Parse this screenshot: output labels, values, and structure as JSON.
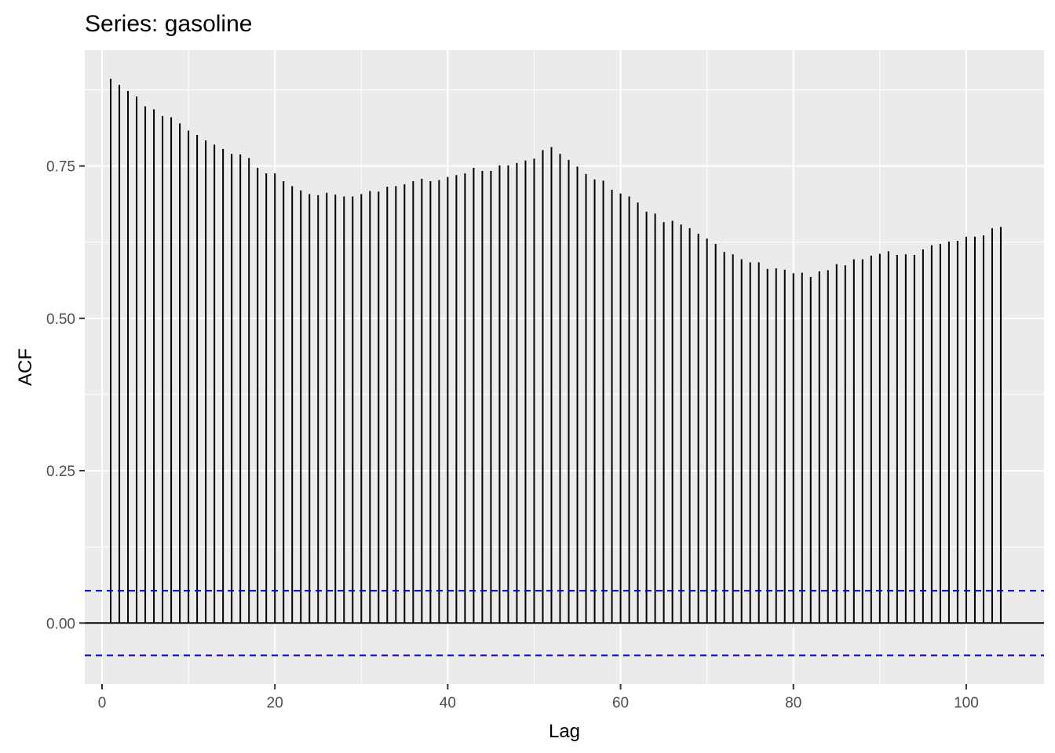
{
  "chart_data": {
    "type": "bar",
    "title": "Series: gasoline",
    "xlabel": "Lag",
    "ylabel": "ACF",
    "xlim": [
      -2,
      109
    ],
    "ylim": [
      -0.1,
      0.94
    ],
    "x_ticks": [
      0,
      20,
      40,
      60,
      80,
      100
    ],
    "x_tick_labels": [
      "0",
      "20",
      "40",
      "60",
      "80",
      "100"
    ],
    "y_ticks": [
      0.0,
      0.25,
      0.5,
      0.75
    ],
    "y_tick_labels": [
      "0.00",
      "0.25",
      "0.50",
      "0.75"
    ],
    "grid": true,
    "legend": "none",
    "confidence_bound": 0.053,
    "colors": {
      "panel_background": "#ebebeb",
      "grid": "#ffffff",
      "bars": "#000000",
      "confidence_lines": "#0000cc"
    },
    "series": [
      {
        "values": [
          0.893,
          0.883,
          0.873,
          0.864,
          0.848,
          0.843,
          0.832,
          0.83,
          0.82,
          0.808,
          0.801,
          0.792,
          0.785,
          0.778,
          0.77,
          0.769,
          0.763,
          0.747,
          0.738,
          0.738,
          0.725,
          0.717,
          0.71,
          0.704,
          0.702,
          0.706,
          0.703,
          0.7,
          0.7,
          0.704,
          0.709,
          0.708,
          0.716,
          0.717,
          0.72,
          0.725,
          0.729,
          0.725,
          0.727,
          0.732,
          0.735,
          0.738,
          0.747,
          0.742,
          0.742,
          0.751,
          0.751,
          0.755,
          0.759,
          0.762,
          0.776,
          0.781,
          0.77,
          0.76,
          0.749,
          0.737,
          0.728,
          0.726,
          0.711,
          0.705,
          0.7,
          0.69,
          0.675,
          0.672,
          0.658,
          0.66,
          0.654,
          0.648,
          0.639,
          0.631,
          0.622,
          0.609,
          0.605,
          0.597,
          0.592,
          0.592,
          0.581,
          0.582,
          0.58,
          0.574,
          0.575,
          0.568,
          0.577,
          0.579,
          0.589,
          0.587,
          0.597,
          0.597,
          0.603,
          0.606,
          0.61,
          0.604,
          0.605,
          0.604,
          0.613,
          0.62,
          0.622,
          0.626,
          0.627,
          0.634,
          0.634,
          0.636,
          0.648,
          0.65
        ]
      }
    ]
  }
}
